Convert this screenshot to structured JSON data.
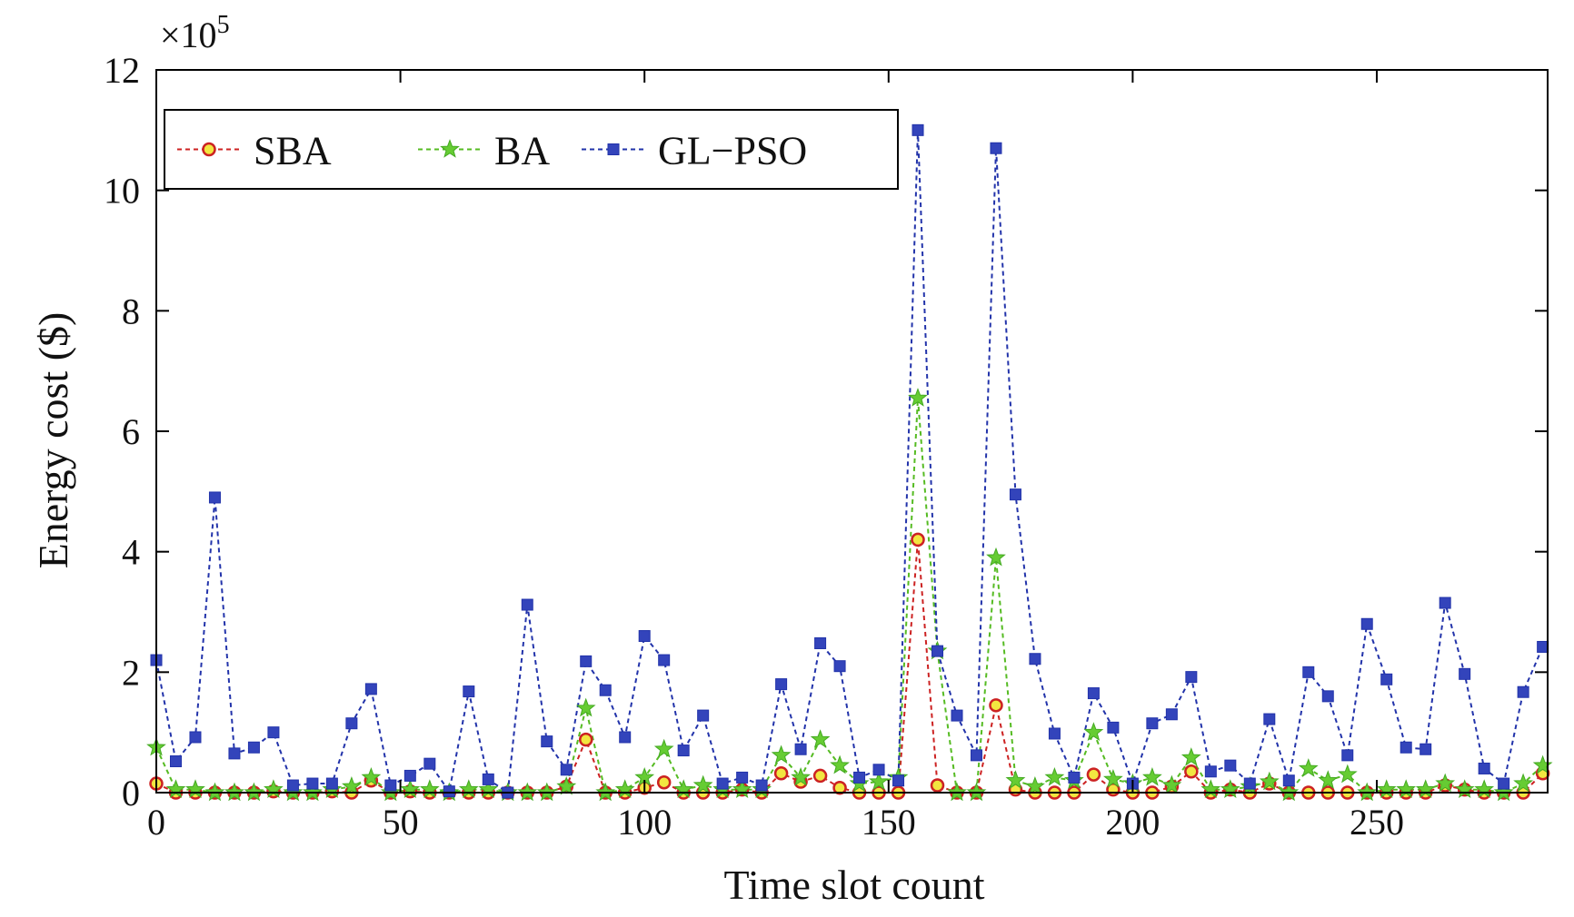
{
  "chart_data": {
    "type": "line",
    "xlabel": "Time slot count",
    "ylabel": "Energy cost ($)",
    "y_multiplier": "×10",
    "y_multiplier_exp": "5",
    "xlim": [
      0,
      285
    ],
    "ylim": [
      0,
      12
    ],
    "xticks": [
      0,
      50,
      100,
      150,
      200,
      250
    ],
    "yticks": [
      0,
      2,
      4,
      6,
      8,
      10,
      12
    ],
    "grid": false,
    "legend_position": "top-left",
    "x": [
      0,
      4,
      8,
      12,
      16,
      20,
      24,
      28,
      32,
      36,
      40,
      44,
      48,
      52,
      56,
      60,
      64,
      68,
      72,
      76,
      80,
      84,
      88,
      92,
      96,
      100,
      104,
      108,
      112,
      116,
      120,
      124,
      128,
      132,
      136,
      140,
      144,
      148,
      152,
      156,
      160,
      164,
      168,
      172,
      176,
      180,
      184,
      188,
      192,
      196,
      200,
      204,
      208,
      212,
      216,
      220,
      224,
      228,
      232,
      236,
      240,
      244,
      248,
      252,
      256,
      260,
      264,
      268,
      272,
      276,
      280,
      284
    ],
    "series": [
      {
        "name": "SBA",
        "color": "#cc2222",
        "fill": "#f2e640",
        "marker": "circle",
        "values": [
          0.15,
          0,
          0,
          0,
          0,
          0,
          0.02,
          0,
          0,
          0.02,
          0,
          0.2,
          0,
          0.02,
          0,
          0,
          0,
          0,
          0,
          0,
          0,
          0.1,
          0.88,
          0,
          0,
          0.08,
          0.17,
          0,
          0,
          0,
          0.05,
          0,
          0.32,
          0.18,
          0.28,
          0.08,
          0,
          0,
          0,
          4.2,
          0.12,
          0,
          0,
          1.45,
          0.05,
          0,
          0,
          0,
          0.3,
          0.05,
          0,
          0,
          0.1,
          0.35,
          0,
          0.05,
          0,
          0.15,
          0,
          0,
          0,
          0,
          0,
          0,
          0,
          0,
          0.12,
          0.05,
          0,
          0,
          0,
          0.32
        ]
      },
      {
        "name": "BA",
        "color": "#55bb22",
        "fill": "#66cc33",
        "marker": "star",
        "values": [
          0.75,
          0.05,
          0.05,
          0,
          0,
          0,
          0.05,
          0,
          0,
          0.05,
          0.1,
          0.25,
          0,
          0.05,
          0.05,
          0,
          0.05,
          0.05,
          0,
          0,
          0,
          0.1,
          1.4,
          0,
          0.05,
          0.25,
          0.72,
          0.05,
          0.12,
          0.05,
          0.05,
          0.05,
          0.62,
          0.25,
          0.88,
          0.45,
          0.15,
          0.18,
          0.25,
          6.55,
          2.35,
          0,
          0,
          3.9,
          0.2,
          0.1,
          0.25,
          0.2,
          1.0,
          0.22,
          0.15,
          0.25,
          0.12,
          0.58,
          0.05,
          0.05,
          0.1,
          0.18,
          0,
          0.4,
          0.2,
          0.3,
          0,
          0.05,
          0.05,
          0.05,
          0.15,
          0.05,
          0.05,
          0,
          0.15,
          0.45
        ]
      },
      {
        "name": "GL−PSO",
        "color": "#2233aa",
        "fill": "#3344bb",
        "marker": "square",
        "values": [
          2.2,
          0.52,
          0.92,
          4.9,
          0.65,
          0.75,
          1.0,
          0.12,
          0.15,
          0.15,
          1.15,
          1.72,
          0.12,
          0.28,
          0.48,
          0.02,
          1.68,
          0.22,
          0,
          3.12,
          0.85,
          0.38,
          2.18,
          1.7,
          0.92,
          2.6,
          2.2,
          0.7,
          1.28,
          0.15,
          0.25,
          0.12,
          1.8,
          0.72,
          2.48,
          2.1,
          0.25,
          0.38,
          0.2,
          11.0,
          2.35,
          1.28,
          0.62,
          10.7,
          4.95,
          2.22,
          0.98,
          0.25,
          1.65,
          1.08,
          0.15,
          1.15,
          1.3,
          1.92,
          0.35,
          0.45,
          0.15,
          1.22,
          0.2,
          2.0,
          1.6,
          0.62,
          2.8,
          1.88,
          0.75,
          0.72,
          3.15,
          1.97,
          0.4,
          0.15,
          1.67,
          2.42
        ]
      }
    ]
  }
}
